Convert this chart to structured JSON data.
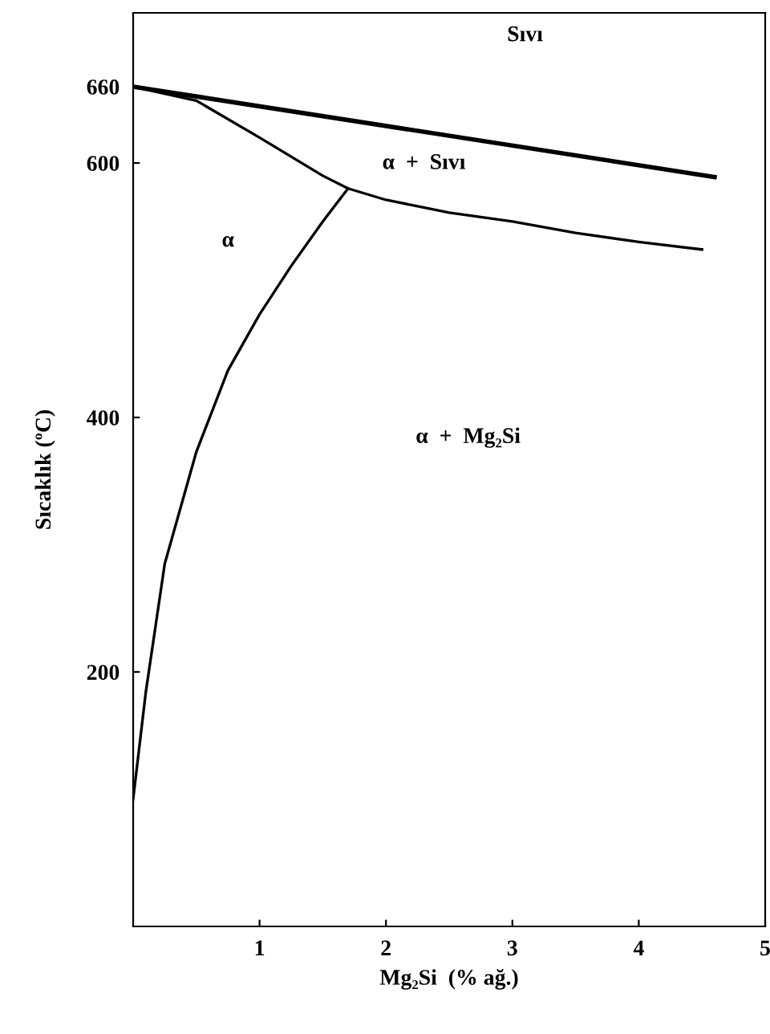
{
  "chart_data": {
    "type": "line",
    "xlabel": "Mg₂Si  (% ağ.)",
    "ylabel": "Sıcaklık (ºC)",
    "xlim": [
      0,
      5
    ],
    "ylim": [
      0,
      718
    ],
    "xticks": [
      1,
      2,
      3,
      4,
      5
    ],
    "yticks": [
      200,
      400,
      600,
      660
    ],
    "grid": false,
    "legend": false,
    "marker": "none",
    "line_style": "solid",
    "series": [
      {
        "color": "#000000",
        "x": [
          0,
          4.6
        ],
        "values": [
          660,
          589
        ]
      },
      {
        "color": "#000000",
        "x": [
          0,
          0.5,
          1,
          1.5,
          1.7,
          2,
          2.5,
          3,
          3.5,
          4,
          4.5
        ],
        "values": [
          660,
          649,
          620,
          590,
          580,
          571,
          561,
          554,
          545,
          538,
          532
        ]
      },
      {
        "color": "#000000",
        "x": [
          0,
          0.1,
          0.25,
          0.5,
          0.75,
          1,
          1.25,
          1.5,
          1.7
        ],
        "values": [
          100,
          184,
          285,
          373,
          437,
          481,
          519,
          554,
          580
        ]
      }
    ],
    "annotations": [
      "Sıvı",
      "α  +  Sıvı",
      "α",
      "α  +  Mg₂Si"
    ]
  }
}
